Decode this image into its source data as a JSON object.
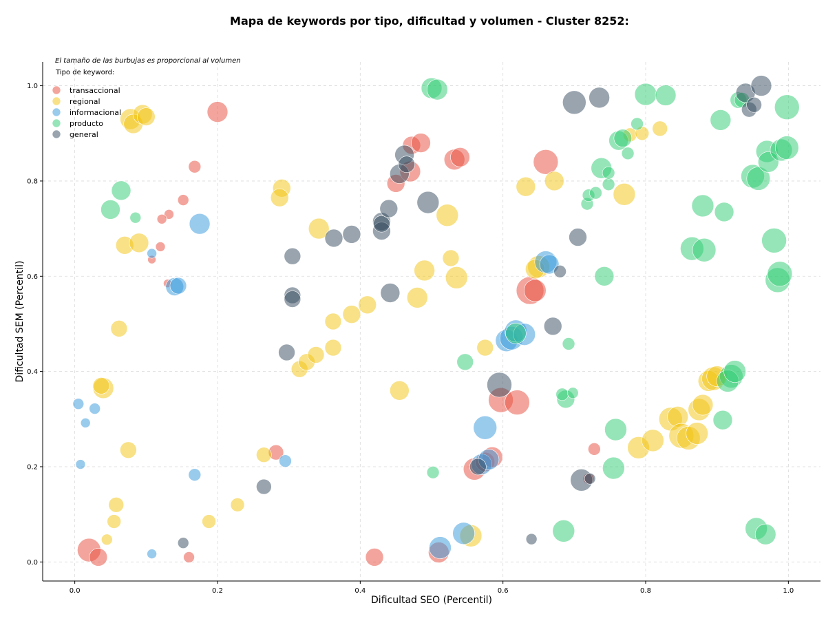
{
  "chart_data": {
    "type": "scatter",
    "title": "Mapa de keywords por tipo, dificultad y volumen - Cluster 8252:",
    "xlabel": "Dificultad SEO (Percentil)",
    "ylabel": "Dificultad SEM (Percentil)",
    "xlim": [
      -0.045,
      1.045
    ],
    "ylim": [
      -0.04,
      1.05
    ],
    "xticks": [
      "0.0",
      "0.2",
      "0.4",
      "0.6",
      "0.8",
      "1.0"
    ],
    "yticks": [
      "0.0",
      "0.2",
      "0.4",
      "0.6",
      "0.8",
      "1.0"
    ],
    "grid": true,
    "note": "El tamaño de las burbujas es proporcional al volumen",
    "legend": {
      "title": "Tipo de keyword:",
      "position": "top-left"
    },
    "series": [
      {
        "name": "transaccional",
        "color": "#e74c3c",
        "points": [
          [
            0.02,
            0.025,
            17
          ],
          [
            0.033,
            0.01,
            13
          ],
          [
            0.2,
            0.945,
            15
          ],
          [
            0.168,
            0.83,
            9
          ],
          [
            0.152,
            0.76,
            8
          ],
          [
            0.132,
            0.73,
            7
          ],
          [
            0.122,
            0.72,
            7
          ],
          [
            0.12,
            0.662,
            7
          ],
          [
            0.108,
            0.635,
            6
          ],
          [
            0.13,
            0.585,
            6
          ],
          [
            0.282,
            0.23,
            11
          ],
          [
            0.16,
            0.01,
            8
          ],
          [
            0.42,
            0.01,
            13
          ],
          [
            0.45,
            0.795,
            13
          ],
          [
            0.47,
            0.82,
            15
          ],
          [
            0.472,
            0.875,
            13
          ],
          [
            0.485,
            0.88,
            14
          ],
          [
            0.532,
            0.845,
            15
          ],
          [
            0.54,
            0.85,
            14
          ],
          [
            0.66,
            0.84,
            18
          ],
          [
            0.638,
            0.57,
            20
          ],
          [
            0.645,
            0.57,
            16
          ],
          [
            0.597,
            0.34,
            18
          ],
          [
            0.62,
            0.335,
            18
          ],
          [
            0.56,
            0.195,
            16
          ],
          [
            0.575,
            0.21,
            14
          ],
          [
            0.585,
            0.22,
            15
          ],
          [
            0.51,
            0.02,
            15
          ],
          [
            0.728,
            0.237,
            9
          ],
          [
            0.72,
            0.175,
            8
          ]
        ]
      },
      {
        "name": "regional",
        "color": "#f1c40f",
        "points": [
          [
            0.078,
            0.93,
            15
          ],
          [
            0.082,
            0.92,
            14
          ],
          [
            0.095,
            0.94,
            14
          ],
          [
            0.1,
            0.935,
            13
          ],
          [
            0.07,
            0.665,
            13
          ],
          [
            0.09,
            0.67,
            14
          ],
          [
            0.062,
            0.49,
            12
          ],
          [
            0.04,
            0.365,
            15
          ],
          [
            0.037,
            0.37,
            12
          ],
          [
            0.075,
            0.235,
            12
          ],
          [
            0.058,
            0.12,
            11
          ],
          [
            0.055,
            0.085,
            10
          ],
          [
            0.045,
            0.047,
            8
          ],
          [
            0.29,
            0.785,
            13
          ],
          [
            0.287,
            0.765,
            13
          ],
          [
            0.342,
            0.7,
            15
          ],
          [
            0.265,
            0.225,
            11
          ],
          [
            0.188,
            0.085,
            10
          ],
          [
            0.228,
            0.12,
            10
          ],
          [
            0.315,
            0.405,
            12
          ],
          [
            0.325,
            0.42,
            12
          ],
          [
            0.338,
            0.435,
            12
          ],
          [
            0.362,
            0.505,
            12
          ],
          [
            0.362,
            0.45,
            12
          ],
          [
            0.388,
            0.52,
            13
          ],
          [
            0.41,
            0.54,
            13
          ],
          [
            0.455,
            0.36,
            14
          ],
          [
            0.48,
            0.555,
            15
          ],
          [
            0.49,
            0.612,
            15
          ],
          [
            0.522,
            0.728,
            16
          ],
          [
            0.527,
            0.638,
            12
          ],
          [
            0.535,
            0.597,
            16
          ],
          [
            0.555,
            0.055,
            16
          ],
          [
            0.575,
            0.45,
            12
          ],
          [
            0.632,
            0.788,
            14
          ],
          [
            0.65,
            0.62,
            16
          ],
          [
            0.645,
            0.615,
            14
          ],
          [
            0.672,
            0.8,
            14
          ],
          [
            0.77,
            0.772,
            16
          ],
          [
            0.778,
            0.897,
            10
          ],
          [
            0.795,
            0.9,
            10
          ],
          [
            0.82,
            0.91,
            11
          ],
          [
            0.79,
            0.24,
            16
          ],
          [
            0.81,
            0.255,
            16
          ],
          [
            0.835,
            0.3,
            17
          ],
          [
            0.845,
            0.305,
            15
          ],
          [
            0.85,
            0.265,
            18
          ],
          [
            0.86,
            0.26,
            17
          ],
          [
            0.872,
            0.27,
            16
          ],
          [
            0.875,
            0.32,
            16
          ],
          [
            0.88,
            0.33,
            15
          ],
          [
            0.888,
            0.38,
            15
          ],
          [
            0.895,
            0.385,
            17
          ],
          [
            0.9,
            0.39,
            15
          ]
        ]
      },
      {
        "name": "informacional",
        "color": "#3498db",
        "points": [
          [
            0.005,
            0.332,
            8
          ],
          [
            0.028,
            0.322,
            8
          ],
          [
            0.015,
            0.292,
            7
          ],
          [
            0.008,
            0.205,
            7
          ],
          [
            0.108,
            0.017,
            7
          ],
          [
            0.108,
            0.648,
            7
          ],
          [
            0.175,
            0.71,
            15
          ],
          [
            0.14,
            0.578,
            13
          ],
          [
            0.145,
            0.58,
            12
          ],
          [
            0.168,
            0.183,
            9
          ],
          [
            0.295,
            0.212,
            9
          ],
          [
            0.512,
            0.03,
            16
          ],
          [
            0.545,
            0.06,
            16
          ],
          [
            0.575,
            0.282,
            17
          ],
          [
            0.57,
            0.205,
            15
          ],
          [
            0.58,
            0.215,
            15
          ],
          [
            0.605,
            0.465,
            16
          ],
          [
            0.612,
            0.47,
            17
          ],
          [
            0.618,
            0.485,
            16
          ],
          [
            0.63,
            0.478,
            16
          ],
          [
            0.66,
            0.63,
            16
          ],
          [
            0.665,
            0.625,
            14
          ]
        ]
      },
      {
        "name": "producto",
        "color": "#2ecc71",
        "points": [
          [
            0.065,
            0.78,
            14
          ],
          [
            0.05,
            0.74,
            14
          ],
          [
            0.085,
            0.723,
            8
          ],
          [
            0.5,
            0.995,
            15
          ],
          [
            0.508,
            0.992,
            15
          ],
          [
            0.502,
            0.188,
            9
          ],
          [
            0.547,
            0.42,
            12
          ],
          [
            0.618,
            0.48,
            15
          ],
          [
            0.688,
            0.342,
            13
          ],
          [
            0.683,
            0.352,
            9
          ],
          [
            0.698,
            0.355,
            8
          ],
          [
            0.692,
            0.458,
            9
          ],
          [
            0.685,
            0.065,
            16
          ],
          [
            0.718,
            0.752,
            9
          ],
          [
            0.72,
            0.77,
            9
          ],
          [
            0.73,
            0.775,
            9
          ],
          [
            0.738,
            0.827,
            15
          ],
          [
            0.742,
            0.6,
            14
          ],
          [
            0.748,
            0.793,
            9
          ],
          [
            0.748,
            0.817,
            9
          ],
          [
            0.758,
            0.278,
            16
          ],
          [
            0.755,
            0.197,
            16
          ],
          [
            0.762,
            0.885,
            14
          ],
          [
            0.768,
            0.89,
            13
          ],
          [
            0.775,
            0.858,
            9
          ],
          [
            0.788,
            0.92,
            9
          ],
          [
            0.8,
            0.982,
            16
          ],
          [
            0.828,
            0.98,
            15
          ],
          [
            0.865,
            0.658,
            17
          ],
          [
            0.882,
            0.655,
            17
          ],
          [
            0.88,
            0.748,
            16
          ],
          [
            0.91,
            0.735,
            14
          ],
          [
            0.905,
            0.928,
            15
          ],
          [
            0.908,
            0.298,
            14
          ],
          [
            0.92,
            0.39,
            17
          ],
          [
            0.915,
            0.38,
            16
          ],
          [
            0.925,
            0.4,
            16
          ],
          [
            0.93,
            0.97,
            12
          ],
          [
            0.935,
            0.97,
            11
          ],
          [
            0.95,
            0.81,
            17
          ],
          [
            0.958,
            0.805,
            17
          ],
          [
            0.955,
            0.07,
            16
          ],
          [
            0.968,
            0.058,
            15
          ],
          [
            0.97,
            0.862,
            16
          ],
          [
            0.972,
            0.84,
            15
          ],
          [
            0.98,
            0.675,
            18
          ],
          [
            0.985,
            0.592,
            18
          ],
          [
            0.988,
            0.605,
            18
          ],
          [
            0.99,
            0.865,
            16
          ],
          [
            0.998,
            0.87,
            17
          ],
          [
            0.998,
            0.955,
            18
          ]
        ]
      },
      {
        "name": "general",
        "color": "#34495e",
        "points": [
          [
            0.265,
            0.158,
            11
          ],
          [
            0.152,
            0.04,
            8
          ],
          [
            0.297,
            0.44,
            12
          ],
          [
            0.305,
            0.642,
            12
          ],
          [
            0.305,
            0.56,
            12
          ],
          [
            0.305,
            0.552,
            12
          ],
          [
            0.363,
            0.68,
            13
          ],
          [
            0.388,
            0.688,
            13
          ],
          [
            0.43,
            0.715,
            13
          ],
          [
            0.43,
            0.695,
            13
          ],
          [
            0.43,
            0.71,
            12
          ],
          [
            0.44,
            0.742,
            13
          ],
          [
            0.442,
            0.565,
            14
          ],
          [
            0.455,
            0.815,
            14
          ],
          [
            0.462,
            0.855,
            14
          ],
          [
            0.465,
            0.835,
            12
          ],
          [
            0.495,
            0.755,
            16
          ],
          [
            0.565,
            0.2,
            12
          ],
          [
            0.595,
            0.372,
            18
          ],
          [
            0.64,
            0.048,
            8
          ],
          [
            0.67,
            0.495,
            13
          ],
          [
            0.68,
            0.61,
            9
          ],
          [
            0.7,
            0.965,
            17
          ],
          [
            0.705,
            0.682,
            13
          ],
          [
            0.71,
            0.172,
            16
          ],
          [
            0.722,
            0.175,
            8
          ],
          [
            0.735,
            0.975,
            15
          ],
          [
            0.94,
            0.985,
            14
          ],
          [
            0.945,
            0.95,
            11
          ],
          [
            0.952,
            0.96,
            11
          ],
          [
            0.962,
            1.0,
            15
          ]
        ]
      }
    ]
  }
}
